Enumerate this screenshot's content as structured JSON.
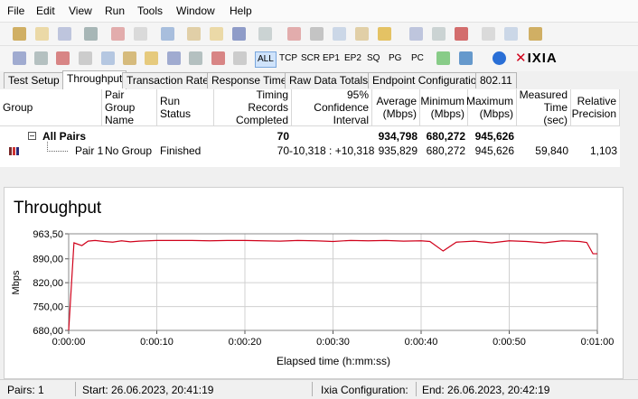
{
  "menu": [
    "File",
    "Edit",
    "View",
    "Run",
    "Tools",
    "Window",
    "Help"
  ],
  "toolbar_buttons": [
    "ALL",
    "TCP",
    "SCR",
    "EP1",
    "EP2",
    "SQ",
    "PG",
    "PC"
  ],
  "logo": "IXIA",
  "tabs": [
    "Test Setup",
    "Throughput",
    "Transaction Rate",
    "Response Time",
    "Raw Data Totals",
    "Endpoint Configuration",
    "802.11"
  ],
  "table": {
    "columns": [
      "Group",
      "Pair Group Name",
      "Run Status",
      "Timing Records Completed",
      "95% Confidence Interval",
      "Average (Mbps)",
      "Minimum (Mbps)",
      "Maximum (Mbps)",
      "Measured Time (sec)",
      "Relative Precision"
    ],
    "rows": [
      [
        "All Pairs",
        null,
        null,
        "70",
        null,
        "934,798",
        "680,272",
        "945,626",
        null,
        null
      ],
      [
        "Pair 1",
        "No Group",
        "Finished",
        "70",
        "-10,318 : +10,318",
        "935,829",
        "680,272",
        "945,626",
        "59,840",
        "1,103"
      ]
    ]
  },
  "chart_data": {
    "type": "line",
    "title": "Throughput",
    "x_label": "Elapsed time (h:mm:ss)",
    "y_label": "Mbps",
    "x": [
      0,
      0.6,
      1.5,
      2.2,
      3,
      4,
      5,
      6,
      7,
      8,
      9,
      10,
      12,
      14,
      16,
      18,
      20,
      22,
      24,
      26,
      28,
      30,
      32,
      34,
      36,
      38,
      40,
      41,
      42.5,
      44,
      46,
      48,
      50,
      52,
      54,
      56,
      58,
      58.8,
      59.5,
      60
    ],
    "series": [
      {
        "name": "Pair 1",
        "color": "#d0021b",
        "values": [
          680,
          937,
          929,
          942,
          944,
          941,
          939,
          943,
          940,
          942,
          943,
          944,
          944,
          944,
          943,
          944,
          944,
          943,
          942,
          944,
          943,
          941,
          944,
          943,
          944,
          942,
          943,
          941,
          913,
          939,
          942,
          937,
          943,
          941,
          937,
          943,
          941,
          938,
          905,
          905
        ]
      }
    ],
    "xlim": [
      0,
      60
    ],
    "xticks": [
      {
        "value": 0,
        "label": "0:00:00"
      },
      {
        "value": 10,
        "label": "0:00:10"
      },
      {
        "value": 20,
        "label": "0:00:20"
      },
      {
        "value": 30,
        "label": "0:00:30"
      },
      {
        "value": 40,
        "label": "0:00:40"
      },
      {
        "value": 50,
        "label": "0:00:50"
      },
      {
        "value": 60,
        "label": "0:01:00"
      }
    ],
    "ylim": [
      680,
      963.5
    ],
    "yticks": [
      {
        "value": 680,
        "label": "680,00"
      },
      {
        "value": 750,
        "label": "750,00"
      },
      {
        "value": 820,
        "label": "820,00"
      },
      {
        "value": 890,
        "label": "890,00"
      },
      {
        "value": 963.5,
        "label": "963,50"
      }
    ],
    "grid": true
  },
  "status_bar": [
    "Pairs: 1",
    "Start: 26.06.2023, 20:41:19",
    "Ixia Configuration:",
    "End: 26.06.2023, 20:42:19"
  ]
}
